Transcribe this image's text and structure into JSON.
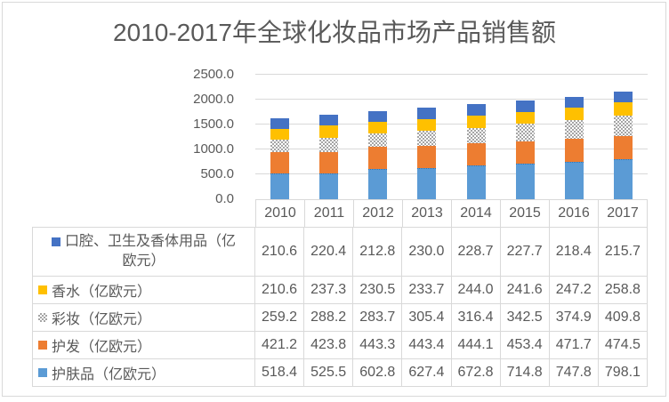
{
  "title": "2010-2017年全球化妆品市场产品销售额",
  "chart_data": {
    "type": "bar",
    "stacked": true,
    "title": "2010-2017年全球化妆品市场产品销售额",
    "categories": [
      "2010",
      "2011",
      "2012",
      "2013",
      "2014",
      "2015",
      "2016",
      "2017"
    ],
    "stack_order": "bottom-to-top",
    "series": [
      {
        "id": "skincare",
        "name": "护肤品（亿欧元）",
        "color": "#5B9BD5",
        "edge": "dotted",
        "edge_color": "#2E75B6",
        "values": [
          518.4,
          525.5,
          602.8,
          627.4,
          672.8,
          714.8,
          747.8,
          798.1
        ]
      },
      {
        "id": "haircare",
        "name": "护发（亿欧元）",
        "color": "#ED7D31",
        "values": [
          421.2,
          423.8,
          443.3,
          443.4,
          444.1,
          453.4,
          471.7,
          474.5
        ]
      },
      {
        "id": "makeup",
        "name": "彩妆（亿欧元）",
        "color": "#A5A5A5",
        "pattern": "checker",
        "values": [
          259.2,
          288.2,
          283.7,
          305.4,
          316.4,
          342.5,
          374.9,
          409.8
        ]
      },
      {
        "id": "perfume",
        "name": "香水（亿欧元）",
        "color": "#FFC000",
        "values": [
          210.6,
          237.3,
          230.5,
          233.7,
          244.0,
          241.6,
          247.2,
          258.8
        ]
      },
      {
        "id": "oral-care",
        "name": "口腔、卫生及香体用品（亿欧元）",
        "color": "#4472C4",
        "values": [
          210.6,
          220.4,
          212.8,
          230.0,
          228.7,
          227.7,
          218.4,
          215.7
        ]
      }
    ],
    "ylim": [
      0,
      2500
    ],
    "ytick_labels": [
      "2500.0",
      "2000.0",
      "1500.0",
      "1000.0",
      "500.0",
      "0.0"
    ],
    "grid": true,
    "legend_position": "data table below chart, legend keys in row labels"
  },
  "table": {
    "column_headers": [
      "2010",
      "2011",
      "2012",
      "2013",
      "2014",
      "2015",
      "2016",
      "2017"
    ],
    "row_order": [
      "oral-care",
      "perfume",
      "makeup",
      "haircare",
      "skincare"
    ],
    "cell_values": {
      "oral-care": [
        "210.6",
        "220.4",
        "212.8",
        "230.0",
        "228.7",
        "227.7",
        "218.4",
        "215.7"
      ],
      "perfume": [
        "210.6",
        "237.3",
        "230.5",
        "233.7",
        "244.0",
        "241.6",
        "247.2",
        "258.8"
      ],
      "makeup": [
        "259.2",
        "288.2",
        "283.7",
        "305.4",
        "316.4",
        "342.5",
        "374.9",
        "409.8"
      ],
      "haircare": [
        "421.2",
        "423.8",
        "443.3",
        "443.4",
        "444.1",
        "453.4",
        "471.7",
        "474.5"
      ],
      "skincare": [
        "518.4",
        "525.5",
        "602.8",
        "627.4",
        "672.8",
        "714.8",
        "747.8",
        "798.1"
      ]
    }
  },
  "colors": {
    "text": "#595959",
    "grid": "#D9D9D9",
    "border": "#D9D9D9",
    "background": "#FFFFFF"
  }
}
